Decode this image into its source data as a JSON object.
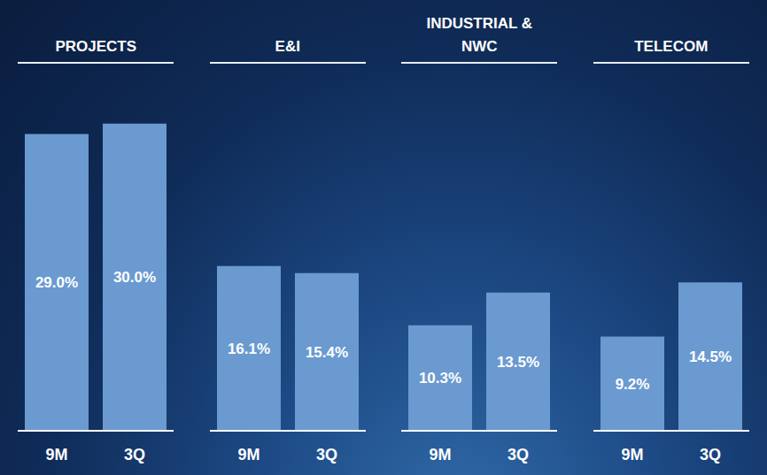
{
  "chart_data": [
    {
      "type": "bar",
      "title": "PROJECTS",
      "categories": [
        "9M",
        "3Q"
      ],
      "values": [
        29.0,
        30.0
      ],
      "value_labels": [
        "29.0%",
        "30.0%"
      ],
      "color": "#6a9ad0",
      "ylim": [
        0,
        35
      ],
      "data_labels": true,
      "tick_labels": "x"
    },
    {
      "type": "bar",
      "title": "E&I",
      "categories": [
        "9M",
        "3Q"
      ],
      "values": [
        16.1,
        15.4
      ],
      "value_labels": [
        "16.1%",
        "15.4%"
      ],
      "color": "#6a9ad0",
      "ylim": [
        0,
        35
      ],
      "data_labels": true,
      "tick_labels": "x"
    },
    {
      "type": "bar",
      "title": "INDUSTRIAL & NWC",
      "categories": [
        "9M",
        "3Q"
      ],
      "values": [
        10.3,
        13.5
      ],
      "value_labels": [
        "10.3%",
        "13.5%"
      ],
      "color": "#6a9ad0",
      "ylim": [
        0,
        35
      ],
      "data_labels": true,
      "tick_labels": "x"
    },
    {
      "type": "bar",
      "title": "TELECOM",
      "categories": [
        "9M",
        "3Q"
      ],
      "values": [
        9.2,
        14.5
      ],
      "value_labels": [
        "9.2%",
        "14.5%"
      ],
      "color": "#6a9ad0",
      "ylim": [
        0,
        35
      ],
      "data_labels": true,
      "tick_labels": "x"
    }
  ]
}
